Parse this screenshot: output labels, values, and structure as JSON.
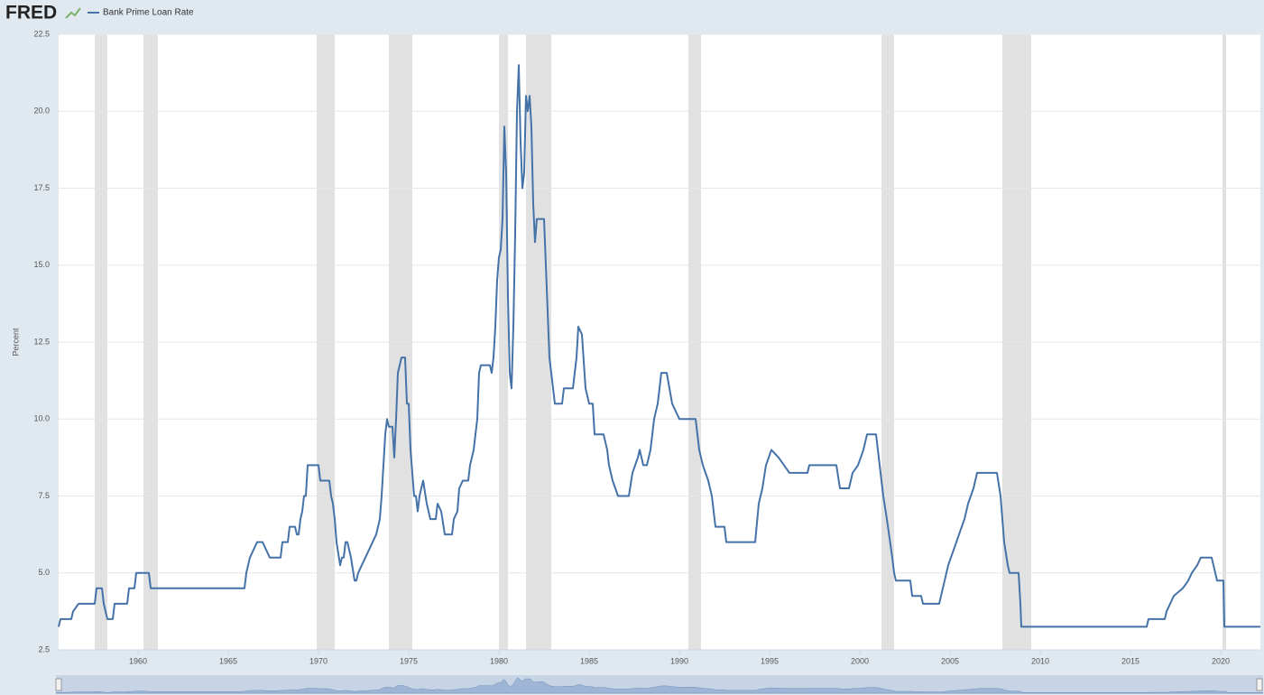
{
  "brand": "FRED",
  "chart_data": {
    "type": "line",
    "y_axis_label": "Percent",
    "xlim": [
      1955.6,
      2022.2
    ],
    "ylim": [
      2.5,
      22.5
    ],
    "xticks": [
      1960,
      1965,
      1970,
      1975,
      1980,
      1985,
      1990,
      1995,
      2000,
      2005,
      2010,
      2015,
      2020
    ],
    "yticks": [
      2.5,
      {
        "value": 5,
        "label": "5.0"
      },
      7.5,
      {
        "value": 10,
        "label": "10.0"
      },
      12.5,
      {
        "value": 15,
        "label": "15.0"
      },
      17.5,
      {
        "value": 20,
        "label": "20.0"
      },
      22.5
    ],
    "grid": true,
    "recessions": [
      [
        1957.6,
        1958.3
      ],
      [
        1960.3,
        1961.1
      ],
      [
        1969.9,
        1970.9
      ],
      [
        1973.9,
        1975.2
      ],
      [
        1980.0,
        1980.5
      ],
      [
        1981.5,
        1982.9
      ],
      [
        1990.5,
        1991.2
      ],
      [
        2001.2,
        2001.9
      ],
      [
        2007.9,
        2009.5
      ],
      [
        2020.1,
        2020.3
      ]
    ],
    "recession_color": "#e1e1e1",
    "x": [
      1955.6,
      1955.7,
      1956.3,
      1956.4,
      1956.7,
      1957.6,
      1957.7,
      1958.0,
      1958.1,
      1958.3,
      1958.6,
      1958.7,
      1959.4,
      1959.5,
      1959.8,
      1959.9,
      1960.6,
      1960.7,
      1965.9,
      1966.0,
      1966.2,
      1966.4,
      1966.6,
      1966.9,
      1967.1,
      1967.3,
      1967.9,
      1968.0,
      1968.3,
      1968.4,
      1968.7,
      1968.8,
      1968.9,
      1969.0,
      1969.1,
      1969.2,
      1969.3,
      1969.4,
      1970.0,
      1970.1,
      1970.6,
      1970.7,
      1970.8,
      1970.9,
      1971.0,
      1971.2,
      1971.3,
      1971.4,
      1971.5,
      1971.6,
      1971.8,
      1972.0,
      1972.1,
      1972.2,
      1972.4,
      1972.6,
      1972.8,
      1973.0,
      1973.2,
      1973.4,
      1973.5,
      1973.6,
      1973.7,
      1973.8,
      1973.9,
      1974.1,
      1974.2,
      1974.3,
      1974.4,
      1974.6,
      1974.8,
      1974.9,
      1975.0,
      1975.1,
      1975.3,
      1975.4,
      1975.5,
      1975.6,
      1975.8,
      1976.0,
      1976.2,
      1976.5,
      1976.6,
      1976.8,
      1977.0,
      1977.4,
      1977.5,
      1977.7,
      1977.8,
      1978.0,
      1978.3,
      1978.4,
      1978.6,
      1978.8,
      1978.9,
      1979.0,
      1979.5,
      1979.6,
      1979.7,
      1979.8,
      1979.9,
      1980.0,
      1980.1,
      1980.2,
      1980.3,
      1980.4,
      1980.5,
      1980.6,
      1980.7,
      1980.8,
      1980.9,
      1981.0,
      1981.1,
      1981.2,
      1981.3,
      1981.4,
      1981.5,
      1981.6,
      1981.7,
      1981.8,
      1981.9,
      1982.0,
      1982.1,
      1982.5,
      1982.6,
      1982.7,
      1982.8,
      1982.9,
      1983.1,
      1983.5,
      1983.6,
      1984.1,
      1984.3,
      1984.4,
      1984.6,
      1984.8,
      1985.0,
      1985.2,
      1985.3,
      1985.8,
      1986.0,
      1986.1,
      1986.3,
      1986.6,
      1987.2,
      1987.4,
      1987.7,
      1987.8,
      1988.0,
      1988.2,
      1988.4,
      1988.6,
      1988.8,
      1989.0,
      1989.3,
      1989.6,
      1990.0,
      1990.9,
      1991.1,
      1991.3,
      1991.6,
      1991.8,
      1992.0,
      1992.5,
      1992.6,
      1994.2,
      1994.4,
      1994.6,
      1994.8,
      1995.1,
      1995.5,
      1995.8,
      1996.1,
      1997.1,
      1997.2,
      1998.7,
      1998.9,
      1999.4,
      1999.6,
      1999.9,
      2000.2,
      2000.4,
      2000.9,
      2001.1,
      2001.3,
      2001.5,
      2001.8,
      2001.9,
      2002.0,
      2002.8,
      2002.9,
      2003.4,
      2003.5,
      2004.4,
      2004.5,
      2004.7,
      2004.9,
      2005.2,
      2005.5,
      2005.8,
      2006.0,
      2006.3,
      2006.5,
      2007.6,
      2007.8,
      2008.0,
      2008.2,
      2008.3,
      2008.8,
      2008.9,
      2008.95,
      2015.9,
      2016.0,
      2016.9,
      2017.0,
      2017.2,
      2017.4,
      2017.9,
      2018.2,
      2018.4,
      2018.7,
      2018.9,
      2019.5,
      2019.6,
      2019.8,
      2020.15,
      2020.2,
      2022.2
    ],
    "series": [
      {
        "name": "Bank Prime Loan Rate",
        "color": "#4572a7",
        "values": [
          3.25,
          3.5,
          3.5,
          3.75,
          4,
          4,
          4.5,
          4.5,
          4,
          3.5,
          3.5,
          4,
          4,
          4.5,
          4.5,
          5,
          5,
          4.5,
          4.5,
          5,
          5.5,
          5.75,
          6,
          6,
          5.75,
          5.5,
          5.5,
          6,
          6,
          6.5,
          6.5,
          6.25,
          6.25,
          6.75,
          7,
          7.5,
          7.5,
          8.5,
          8.5,
          8,
          8,
          7.5,
          7.25,
          6.75,
          6,
          5.25,
          5.5,
          5.5,
          6,
          6,
          5.5,
          4.75,
          4.75,
          5,
          5.25,
          5.5,
          5.75,
          6,
          6.25,
          6.75,
          7.5,
          8.5,
          9.5,
          10,
          9.75,
          9.75,
          8.75,
          10,
          11.5,
          12,
          12,
          10.5,
          10.5,
          9,
          7.5,
          7.5,
          7,
          7.5,
          8,
          7.25,
          6.75,
          6.75,
          7.25,
          7,
          6.25,
          6.25,
          6.75,
          7,
          7.75,
          8,
          8,
          8.5,
          9,
          10,
          11.5,
          11.75,
          11.75,
          11.5,
          12,
          13,
          14.5,
          15.25,
          15.5,
          16.5,
          19.5,
          18,
          14,
          11.5,
          11,
          13,
          16,
          20,
          21.5,
          19,
          17.5,
          18,
          20.5,
          20,
          20.5,
          19.5,
          17,
          15.75,
          16.5,
          16.5,
          15,
          13.5,
          12,
          11.5,
          10.5,
          10.5,
          11,
          11,
          12,
          13,
          12.75,
          11,
          10.5,
          10.5,
          9.5,
          9.5,
          9,
          8.5,
          8,
          7.5,
          7.5,
          8.25,
          8.75,
          9,
          8.5,
          8.5,
          9,
          10,
          10.5,
          11.5,
          11.5,
          10.5,
          10,
          10,
          9,
          8.5,
          8,
          7.5,
          6.5,
          6.5,
          6,
          6,
          7.25,
          7.75,
          8.5,
          9,
          8.75,
          8.5,
          8.25,
          8.25,
          8.5,
          8.5,
          7.75,
          7.75,
          8.25,
          8.5,
          9,
          9.5,
          9.5,
          8.5,
          7.5,
          6.75,
          5.5,
          5,
          4.75,
          4.75,
          4.25,
          4.25,
          4,
          4,
          4.25,
          4.75,
          5.25,
          5.75,
          6.25,
          6.75,
          7.25,
          7.75,
          8.25,
          8.25,
          7.5,
          6,
          5.25,
          5,
          5,
          4,
          3.25,
          3.25,
          3.5,
          3.5,
          3.75,
          4,
          4.25,
          4.5,
          4.75,
          5,
          5.25,
          5.5,
          5.5,
          5.25,
          4.75,
          4.75,
          3.25,
          3.25
        ]
      }
    ]
  }
}
